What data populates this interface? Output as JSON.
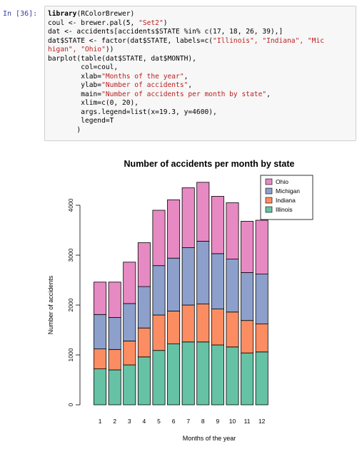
{
  "prompt": "In [36]:",
  "code_lines": [
    {
      "kw": "library",
      "rest": "(RColorBrewer)"
    },
    {
      "pre": "coul <- brewer.pal(5, ",
      "str": "\"Set2\"",
      "post": ")"
    },
    {
      "pre": "dat <- accidents[accidents$STATE %in% c(17, 18, 26, 39),]"
    },
    {
      "pre": "dat$STATE <- factor(dat$STATE, labels=c(",
      "str": "\"Illinois\", \"Indiana\", \"Mic",
      "post": ""
    },
    {
      "str": "higan\", \"Ohio\"",
      "post": "))"
    },
    {
      "pre": "barplot(table(dat$STATE, dat$MONTH),"
    },
    {
      "pre": "        col=coul,"
    },
    {
      "pre": "        xlab=",
      "str": "\"Months of the year\"",
      "post": ","
    },
    {
      "pre": "        ylab=",
      "str": "\"Number of accidents\"",
      "post": ","
    },
    {
      "pre": "        main=",
      "str": "\"Number of accidents per month by state\"",
      "post": ","
    },
    {
      "pre": "        xlim=c(0, 20),"
    },
    {
      "pre": "        args.legend=list(x=19.3, y=4600),"
    },
    {
      "pre": "        legend=T"
    },
    {
      "pre": "       )"
    }
  ],
  "chart_data": {
    "type": "bar",
    "stacked": true,
    "title": "Number of accidents per month by state",
    "xlabel": "Months of the year",
    "ylabel": "Number of accidents",
    "categories": [
      "1",
      "2",
      "3",
      "4",
      "5",
      "6",
      "7",
      "8",
      "9",
      "10",
      "11",
      "12"
    ],
    "yticks": [
      0,
      1000,
      2000,
      3000,
      4000
    ],
    "ylim": [
      0,
      4600
    ],
    "legend_position": "top-right",
    "series": [
      {
        "name": "Illinois",
        "color": "#66c2a5",
        "values": [
          720,
          700,
          800,
          960,
          1090,
          1220,
          1260,
          1260,
          1200,
          1160,
          1040,
          1060
        ]
      },
      {
        "name": "Indiana",
        "color": "#fc8d62",
        "values": [
          400,
          410,
          480,
          580,
          710,
          660,
          740,
          760,
          720,
          700,
          650,
          560
        ]
      },
      {
        "name": "Michigan",
        "color": "#8da0cb",
        "values": [
          690,
          640,
          750,
          830,
          990,
          1060,
          1150,
          1260,
          1110,
          1060,
          960,
          1000
        ]
      },
      {
        "name": "Ohio",
        "color": "#e78ac3",
        "values": [
          650,
          710,
          830,
          880,
          1110,
          1170,
          1200,
          1180,
          1150,
          1130,
          1030,
          1080
        ]
      }
    ]
  }
}
